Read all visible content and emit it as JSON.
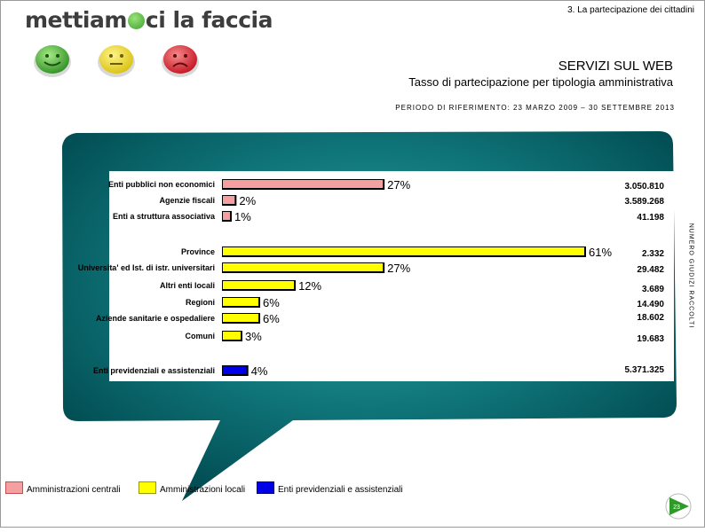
{
  "header": {
    "section": "3. La partecipazione dei cittadini",
    "logo_left": "mettiam",
    "logo_right": "ci la faccia",
    "faces": [
      {
        "name": "green-face",
        "color": "#3aa12c",
        "mood": "happy"
      },
      {
        "name": "yellow-face",
        "color": "#e8d222",
        "mood": "neutral"
      },
      {
        "name": "red-face",
        "color": "#d21f2a",
        "mood": "sad"
      }
    ]
  },
  "title": "SERVIZI SUL WEB",
  "subtitle": "Tasso di partecipazione per tipologia amministrativa",
  "period": "PERIODO DI RIFERIMENTO: 23 MARZO 2009 – 30 SETTEMBRE 2013",
  "side_label": "NUMERO GIUDIZI RACCOLTI",
  "page_number": "23",
  "colors": {
    "centrali": "#f4a0a0",
    "locali": "#ffff00",
    "previdenziali": "#0000e6",
    "bubble_dark": "#00555a",
    "bubble_light": "#2a9a9a"
  },
  "chart_data": {
    "type": "bar",
    "orientation": "horizontal",
    "xlim": [
      0,
      61
    ],
    "categories": [
      "Enti pubblici non economici",
      "Agenzie fiscali",
      "Enti a struttura associativa",
      "Province",
      "Universita' ed Ist. di istr. universitari",
      "Altri enti locali",
      "Regioni",
      "Aziende sanitarie e ospedaliere",
      "Comuni",
      "Enti previdenziali e assistenziali"
    ],
    "values": [
      27,
      2,
      1,
      61,
      27,
      12,
      6,
      6,
      3,
      4
    ],
    "value_labels": [
      "27%",
      "2%",
      "1%",
      "61%",
      "27%",
      "12%",
      "6%",
      "6%",
      "3%",
      "4%"
    ],
    "groups": [
      "Amministrazioni centrali",
      "Amministrazioni centrali",
      "Amministrazioni centrali",
      "Amministrazioni locali",
      "Amministrazioni locali",
      "Amministrazioni locali",
      "Amministrazioni locali",
      "Amministrazioni locali",
      "Amministrazioni locali",
      "Enti previdenziali e assistenziali"
    ],
    "counts": [
      "3.050.810",
      "3.589.268",
      "41.198",
      "2.332",
      "29.482",
      "3.689",
      "14.490",
      "18.602",
      "19.683",
      "5.371.325"
    ],
    "legend": [
      {
        "label": "Amministrazioni centrali",
        "color": "#f4a0a0"
      },
      {
        "label": "Amministrazioni locali",
        "color": "#ffff00"
      },
      {
        "label": "Enti previdenziali e assistenziali",
        "color": "#0000e6"
      }
    ],
    "legend_position": "bottom-left",
    "grid": false
  }
}
